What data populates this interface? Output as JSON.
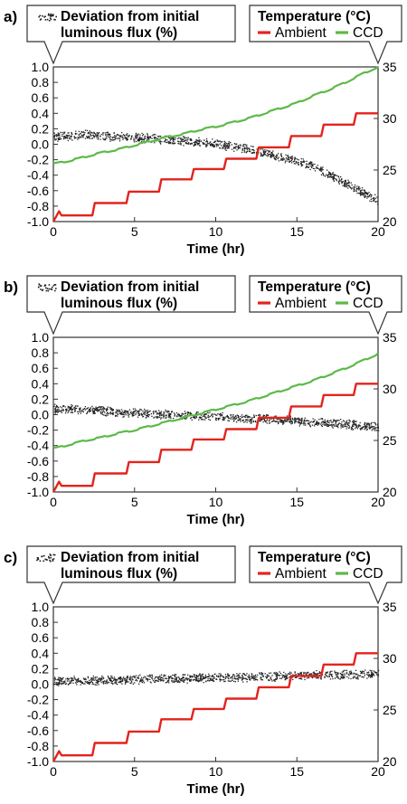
{
  "chart_data": [
    {
      "type": "line",
      "panel_label": "a)",
      "legend_left": {
        "line1": "Deviation from initial",
        "line2": "luminous flux (%)"
      },
      "legend_right": {
        "title": "Temperature (°C)",
        "series1": "Ambient",
        "series2": "CCD"
      },
      "xlabel": "Time (hr)",
      "xlim": [
        0,
        20
      ],
      "xticks": [
        "0",
        "5",
        "10",
        "15",
        "20"
      ],
      "ylim_left": [
        -1.0,
        1.0
      ],
      "yticks_left": [
        "1.0",
        "0.8",
        "0.6",
        "0.4",
        "0.2",
        "0.0",
        "-0.2",
        "-0.4",
        "-0.6",
        "-0.8",
        "-1.0"
      ],
      "ylim_right": [
        20,
        35
      ],
      "yticks_right": [
        "35",
        "30",
        "25",
        "20"
      ],
      "series": [
        {
          "name": "Deviation from initial luminous flux (%)",
          "axis": "left",
          "color": "#222222",
          "style": "dots",
          "x": [
            0,
            2,
            4,
            6,
            8,
            10,
            12,
            14,
            16,
            18,
            20
          ],
          "y": [
            0.1,
            0.13,
            0.1,
            0.08,
            0.05,
            0.01,
            -0.06,
            -0.16,
            -0.28,
            -0.5,
            -0.73
          ]
        },
        {
          "name": "Ambient",
          "axis": "right",
          "color": "#e3231d",
          "style": "step",
          "x": [
            0,
            0.35,
            0.5,
            2.4,
            2.55,
            4.5,
            4.65,
            6.5,
            6.65,
            8.5,
            8.65,
            10.5,
            10.65,
            12.5,
            12.65,
            14.5,
            14.65,
            16.5,
            16.65,
            18.5,
            18.65,
            20
          ],
          "y": [
            20.0,
            21.0,
            20.6,
            20.6,
            21.8,
            21.8,
            22.9,
            22.9,
            24.1,
            24.1,
            25.1,
            25.1,
            26.1,
            26.1,
            27.2,
            27.2,
            28.3,
            28.3,
            29.4,
            29.4,
            30.5,
            30.5
          ]
        },
        {
          "name": "CCD",
          "axis": "right",
          "color": "#5cb947",
          "style": "line",
          "x": [
            0,
            1,
            2,
            3,
            4,
            5,
            6,
            7,
            8,
            9,
            10,
            11,
            12,
            13,
            14,
            15,
            16,
            17,
            18,
            19,
            20
          ],
          "y": [
            25.6,
            25.9,
            26.3,
            26.7,
            27.0,
            27.4,
            27.8,
            28.2,
            28.5,
            28.9,
            29.2,
            29.6,
            30.0,
            30.5,
            31.0,
            31.5,
            32.2,
            32.8,
            33.5,
            34.3,
            35.0
          ]
        }
      ]
    },
    {
      "type": "line",
      "panel_label": "b)",
      "legend_left": {
        "line1": "Deviation from initial",
        "line2": "luminous flux (%)"
      },
      "legend_right": {
        "title": "Temperature (°C)",
        "series1": "Ambient",
        "series2": "CCD"
      },
      "xlabel": "Time (hr)",
      "xlim": [
        0,
        20
      ],
      "xticks": [
        "0",
        "5",
        "10",
        "15",
        "20"
      ],
      "ylim_left": [
        -1.0,
        1.0
      ],
      "yticks_left": [
        "1.0",
        "0.8",
        "0.6",
        "0.4",
        "0.2",
        "0.0",
        "-0.2",
        "-0.4",
        "-0.6",
        "-0.8",
        "-1.0"
      ],
      "ylim_right": [
        20,
        35
      ],
      "yticks_right": [
        "35",
        "30",
        "25",
        "20"
      ],
      "series": [
        {
          "name": "Deviation from initial luminous flux (%)",
          "axis": "left",
          "color": "#222222",
          "style": "dots",
          "x": [
            0,
            2,
            4,
            6,
            8,
            10,
            12,
            14,
            16,
            18,
            20
          ],
          "y": [
            0.08,
            0.07,
            0.04,
            0.02,
            0.0,
            -0.02,
            -0.04,
            -0.06,
            -0.09,
            -0.12,
            -0.15
          ]
        },
        {
          "name": "Ambient",
          "axis": "right",
          "color": "#e3231d",
          "style": "step",
          "x": [
            0,
            0.35,
            0.5,
            2.4,
            2.55,
            4.5,
            4.65,
            6.5,
            6.65,
            8.5,
            8.65,
            10.5,
            10.65,
            12.5,
            12.65,
            14.5,
            14.65,
            16.5,
            16.65,
            18.5,
            18.65,
            20
          ],
          "y": [
            20.0,
            21.0,
            20.6,
            20.6,
            21.8,
            21.8,
            22.9,
            22.9,
            24.1,
            24.1,
            25.1,
            25.1,
            26.1,
            26.1,
            27.2,
            27.2,
            28.3,
            28.3,
            29.4,
            29.4,
            30.5,
            30.5
          ]
        },
        {
          "name": "CCD",
          "axis": "right",
          "color": "#5cb947",
          "style": "line",
          "x": [
            0,
            1,
            2,
            3,
            4,
            5,
            6,
            7,
            8,
            9,
            10,
            11,
            12,
            13,
            14,
            15,
            16,
            17,
            18,
            19,
            20
          ],
          "y": [
            24.2,
            24.6,
            25.0,
            25.3,
            25.7,
            26.0,
            26.4,
            26.8,
            27.2,
            27.6,
            28.0,
            28.4,
            28.8,
            29.3,
            29.8,
            30.3,
            30.8,
            31.4,
            32.0,
            32.7,
            33.4
          ]
        }
      ]
    },
    {
      "type": "line",
      "panel_label": "c)",
      "legend_left": {
        "line1": "Deviation from initial",
        "line2": "luminous flux (%)"
      },
      "legend_right": {
        "title": "Temperature (°C)",
        "series1": "Ambient",
        "series2": "CCD"
      },
      "xlabel": "Time (hr)",
      "xlim": [
        0,
        20
      ],
      "xticks": [
        "0",
        "5",
        "10",
        "15",
        "20"
      ],
      "ylim_left": [
        -1.0,
        1.0
      ],
      "yticks_left": [
        "1.0",
        "0.8",
        "0.6",
        "0.4",
        "0.2",
        "0.0",
        "-0.2",
        "-0.4",
        "-0.6",
        "-0.8",
        "-1.0"
      ],
      "ylim_right": [
        20,
        35
      ],
      "yticks_right": [
        "35",
        "30",
        "25",
        "20"
      ],
      "series": [
        {
          "name": "Deviation from initial luminous flux (%)",
          "axis": "left",
          "color": "#222222",
          "style": "dots",
          "x": [
            0,
            2,
            4,
            6,
            8,
            10,
            12,
            14,
            16,
            18,
            20
          ],
          "y": [
            0.04,
            0.05,
            0.06,
            0.07,
            0.08,
            0.09,
            0.1,
            0.11,
            0.12,
            0.13,
            0.14
          ]
        },
        {
          "name": "Ambient",
          "axis": "right",
          "color": "#e3231d",
          "style": "step",
          "x": [
            0,
            0.35,
            0.5,
            2.4,
            2.55,
            4.5,
            4.65,
            6.5,
            6.65,
            8.5,
            8.65,
            10.5,
            10.65,
            12.5,
            12.65,
            14.5,
            14.65,
            16.5,
            16.65,
            18.5,
            18.65,
            20
          ],
          "y": [
            20.0,
            21.0,
            20.6,
            20.6,
            21.8,
            21.8,
            22.9,
            22.9,
            24.1,
            24.1,
            25.1,
            25.1,
            26.1,
            26.1,
            27.2,
            27.2,
            28.3,
            28.3,
            29.4,
            29.4,
            30.5,
            30.5
          ]
        }
      ]
    }
  ]
}
